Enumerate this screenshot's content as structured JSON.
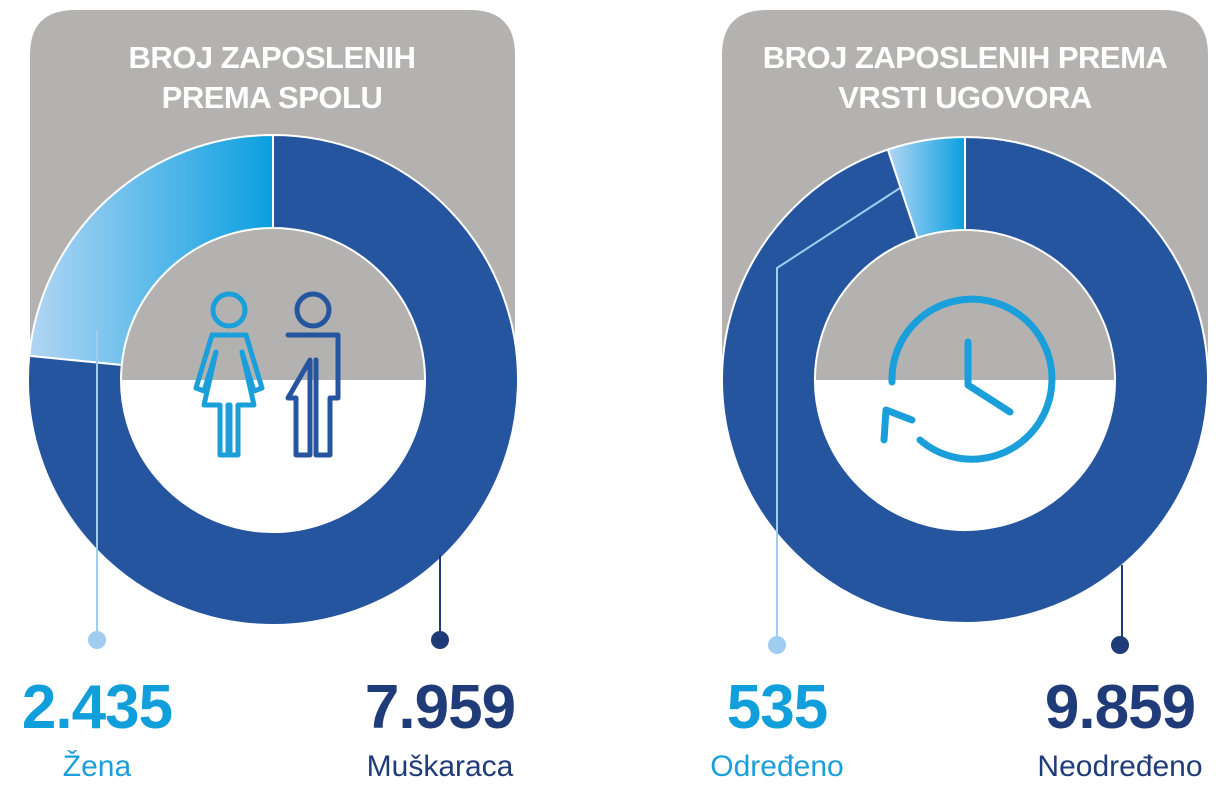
{
  "chart_data": [
    {
      "type": "donut",
      "title": "BROJ ZAPOSLENIH PREMA SPOLU",
      "categories": [
        "Žena",
        "Muškaraca"
      ],
      "values": [
        2435,
        7959
      ],
      "value_labels": [
        "2.435",
        "7.959"
      ],
      "colors": [
        "#0a9fe0",
        "#26559f"
      ]
    },
    {
      "type": "donut",
      "title": "BROJ ZAPOSLENIH PREMA VRSTI UGOVORA",
      "categories": [
        "Određeno",
        "Neodređeno"
      ],
      "values": [
        535,
        9859
      ],
      "value_labels": [
        "535",
        "9.859"
      ],
      "colors": [
        "#0a9fe0",
        "#26559f"
      ]
    }
  ]
}
